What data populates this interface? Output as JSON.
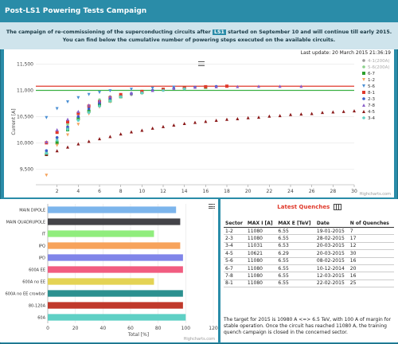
{
  "header": {
    "title": "Post-LS1 Powering Tests Campaign"
  },
  "intro": {
    "line1_before": "The campaign of re-commissioning of the superconducting circuits after",
    "line1_highlight": "LS1",
    "line1_after": "started on September 10 and will continue till early 2015.",
    "line2": "You can find below the cumulative number of powering steps executed on the available circuits."
  },
  "chart1": {
    "last_update": "Last update: 20 March 2015 21:36:19",
    "credits": "Highcharts.com",
    "chart_data": {
      "type": "scatter",
      "xlabel": "",
      "ylabel": "Current [A]",
      "xlim": [
        0,
        30
      ],
      "ylim": [
        9200,
        11600
      ],
      "x_ticks": [
        2,
        4,
        6,
        8,
        10,
        12,
        14,
        16,
        18,
        20,
        22,
        24,
        26,
        28,
        30
      ],
      "y_ticks": [
        9500,
        10000,
        10500,
        11000,
        11500
      ],
      "reference_lines": [
        {
          "name": "6-7 (200A)",
          "value": 11080,
          "color": "#e0392b"
        },
        {
          "name": "5-6 (200A)",
          "value": 11000,
          "color": "#3cb043"
        }
      ],
      "series": [
        {
          "name": "4-1(200A)",
          "color": "#999999",
          "marker": "circle",
          "points": [
            [
              1,
              9800
            ],
            [
              2,
              10050
            ],
            [
              3,
              10300
            ],
            [
              4,
              10480
            ],
            [
              5,
              10620
            ],
            [
              6,
              10740
            ],
            [
              7,
              10820
            ],
            [
              8,
              10880
            ],
            [
              9,
              10920
            ],
            [
              10,
              10960
            ]
          ]
        },
        {
          "name": "5-6(200A)",
          "color": "#8ad08a",
          "marker": "circle",
          "points": [
            [
              1,
              9820
            ],
            [
              2,
              10100
            ],
            [
              3,
              10350
            ],
            [
              4,
              10560
            ],
            [
              5,
              10700
            ],
            [
              6,
              10820
            ],
            [
              7,
              10880
            ]
          ]
        },
        {
          "name": "6-7",
          "color": "#2ca02c",
          "marker": "square",
          "points": [
            [
              1,
              9780
            ],
            [
              2,
              10000
            ],
            [
              3,
              10250
            ],
            [
              4,
              10460
            ],
            [
              5,
              10600
            ],
            [
              6,
              10720
            ],
            [
              7,
              10800
            ],
            [
              8,
              10880
            ],
            [
              10,
              10960
            ],
            [
              12,
              11020
            ],
            [
              14,
              11050
            ],
            [
              16,
              11060
            ]
          ]
        },
        {
          "name": "1-2",
          "color": "#f4a460",
          "marker": "triangle-down",
          "points": [
            [
              1,
              9380
            ],
            [
              2,
              9950
            ],
            [
              3,
              10150
            ],
            [
              4,
              10350
            ],
            [
              5,
              10550
            ],
            [
              6,
              10680
            ],
            [
              7,
              10780
            ],
            [
              8,
              10870
            ],
            [
              10,
              10940
            ],
            [
              12,
              11000
            ]
          ]
        },
        {
          "name": "5-6",
          "color": "#4a8fd4",
          "marker": "triangle-down",
          "points": [
            [
              1,
              10480
            ],
            [
              2,
              10650
            ],
            [
              3,
              10780
            ],
            [
              4,
              10860
            ],
            [
              5,
              10920
            ],
            [
              6,
              10960
            ],
            [
              7,
              10990
            ],
            [
              9,
              11020
            ],
            [
              11,
              11040
            ],
            [
              13,
              11060
            ]
          ]
        },
        {
          "name": "8-1",
          "color": "#e0392b",
          "marker": "square",
          "points": [
            [
              1,
              10000
            ],
            [
              2,
              10200
            ],
            [
              3,
              10400
            ],
            [
              4,
              10560
            ],
            [
              5,
              10700
            ],
            [
              6,
              10780
            ],
            [
              7,
              10860
            ],
            [
              8,
              10920
            ],
            [
              10,
              10980
            ],
            [
              12,
              11020
            ],
            [
              14,
              11050
            ],
            [
              16,
              11070
            ],
            [
              18,
              11080
            ]
          ]
        },
        {
          "name": "2-3",
          "color": "#3b5fc9",
          "marker": "circle",
          "points": [
            [
              1,
              9850
            ],
            [
              2,
              10100
            ],
            [
              3,
              10300
            ],
            [
              4,
              10500
            ],
            [
              5,
              10650
            ],
            [
              6,
              10760
            ],
            [
              7,
              10850
            ],
            [
              9,
              10940
            ],
            [
              11,
              11000
            ],
            [
              13,
              11040
            ],
            [
              15,
              11060
            ],
            [
              17,
              11075
            ]
          ]
        },
        {
          "name": "7-8",
          "color": "#8a5fc9",
          "marker": "triangle-up",
          "points": [
            [
              1,
              10020
            ],
            [
              2,
              10250
            ],
            [
              3,
              10450
            ],
            [
              4,
              10600
            ],
            [
              5,
              10720
            ],
            [
              6,
              10800
            ],
            [
              7,
              10880
            ],
            [
              9,
              10950
            ],
            [
              11,
              11000
            ],
            [
              13,
              11040
            ],
            [
              15,
              11060
            ],
            [
              17,
              11070
            ],
            [
              19,
              11075
            ],
            [
              21,
              11080
            ],
            [
              23,
              11080
            ],
            [
              25,
              11080
            ]
          ]
        },
        {
          "name": "4-5",
          "color": "#8b1a1a",
          "marker": "triangle-up",
          "points": [
            [
              1,
              9780
            ],
            [
              2,
              9850
            ],
            [
              3,
              9920
            ],
            [
              4,
              9980
            ],
            [
              5,
              10030
            ],
            [
              6,
              10080
            ],
            [
              7,
              10120
            ],
            [
              8,
              10170
            ],
            [
              9,
              10210
            ],
            [
              10,
              10240
            ],
            [
              11,
              10280
            ],
            [
              12,
              10310
            ],
            [
              13,
              10340
            ],
            [
              14,
              10370
            ],
            [
              15,
              10390
            ],
            [
              16,
              10410
            ],
            [
              17,
              10430
            ],
            [
              18,
              10450
            ],
            [
              19,
              10460
            ],
            [
              20,
              10480
            ],
            [
              21,
              10490
            ],
            [
              22,
              10510
            ],
            [
              23,
              10520
            ],
            [
              24,
              10540
            ],
            [
              25,
              10550
            ],
            [
              26,
              10560
            ],
            [
              27,
              10580
            ],
            [
              28,
              10590
            ],
            [
              29,
              10600
            ],
            [
              30,
              10610
            ]
          ]
        },
        {
          "name": "3-4",
          "color": "#5fd0c5",
          "marker": "circle",
          "points": [
            [
              1,
              9800
            ],
            [
              2,
              10050
            ],
            [
              3,
              10260
            ],
            [
              4,
              10430
            ],
            [
              5,
              10580
            ],
            [
              6,
              10700
            ],
            [
              7,
              10800
            ],
            [
              8,
              10880
            ],
            [
              10,
              10950
            ],
            [
              12,
              11000
            ],
            [
              14,
              11030
            ]
          ]
        }
      ]
    }
  },
  "chart2": {
    "credits": "Highcharts.com",
    "chart_data": {
      "type": "bar",
      "orientation": "horizontal",
      "categories": [
        "MAIN DIPOLE",
        "MAIN QUADRUPOLE",
        "IT",
        "IPQ",
        "IPD",
        "600A EE",
        "600A no EE",
        "600A no EE crowbar",
        "80-120A",
        "60A"
      ],
      "values": [
        93,
        96,
        77,
        96,
        98,
        98,
        77,
        98,
        98,
        100
      ],
      "colors": [
        "#7cb5ec",
        "#434348",
        "#90ed7d",
        "#f7a35c",
        "#8085e9",
        "#f15c80",
        "#e4d354",
        "#2b908f",
        "#c0392b",
        "#5fd0c5"
      ],
      "xlabel": "Total [%]",
      "xlim": [
        0,
        120
      ],
      "x_ticks": [
        0,
        20,
        40,
        60,
        80,
        100,
        120
      ]
    }
  },
  "quenches": {
    "title": "Latest Quenches",
    "columns": [
      "Sector",
      "MAX I [A]",
      "MAX E [TeV]",
      "Date",
      "N of Quenches"
    ],
    "rows": [
      [
        "1-2",
        "11080",
        "6.55",
        "19-01-2015",
        "7"
      ],
      [
        "2-3",
        "11080",
        "6.55",
        "28-02-2015",
        "17"
      ],
      [
        "3-4",
        "11031",
        "6.53",
        "20-03-2015",
        "12"
      ],
      [
        "4-5",
        "10621",
        "6.29",
        "20-03-2015",
        "30"
      ],
      [
        "5-6",
        "11080",
        "6.55",
        "08-02-2015",
        "16"
      ],
      [
        "6-7",
        "11080",
        "6.55",
        "10-12-2014",
        "20"
      ],
      [
        "7-8",
        "11080",
        "6.55",
        "12-03-2015",
        "16"
      ],
      [
        "8-1",
        "11080",
        "6.55",
        "22-02-2015",
        "25"
      ]
    ],
    "note": "The target for 2015 is 10980 A <=> 6.5 TeV, with 100 A of margin for stable operation. Once the circuit has reached 11080 A, the training quench campaign is closed in the concerned sector."
  }
}
